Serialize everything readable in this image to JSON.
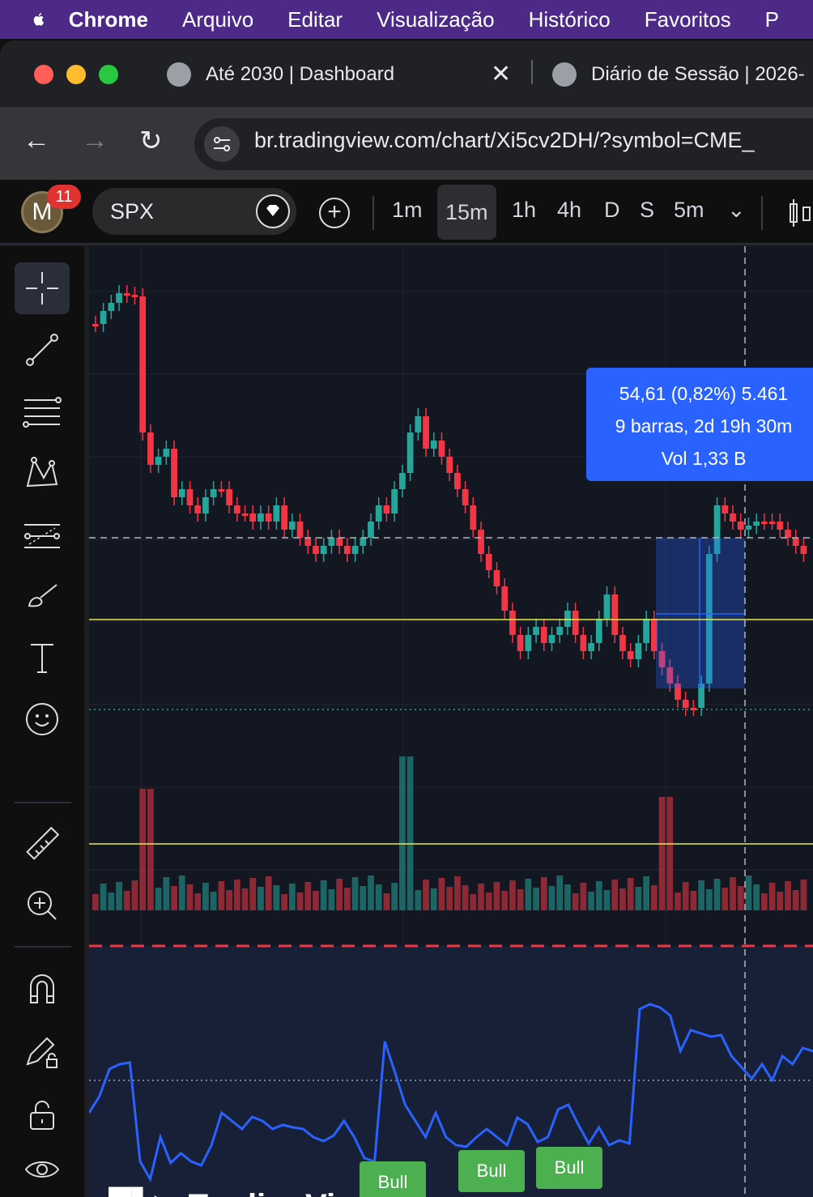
{
  "menubar": {
    "app": "Chrome",
    "items": [
      "Arquivo",
      "Editar",
      "Visualização",
      "Histórico",
      "Favoritos",
      "P"
    ]
  },
  "tabs": [
    {
      "title": "Até 2030 | Dashboard",
      "icon": "globe-icon"
    },
    {
      "title": "Diário de Sessão | 2026-",
      "icon": "globe-icon"
    }
  ],
  "toolbar": {
    "url": "br.tradingview.com/chart/Xi5cv2DH/?symbol=CME_"
  },
  "tv_header": {
    "avatar_letter": "M",
    "notifications": "11",
    "symbol": "SPX",
    "timeframes": [
      "1m",
      "15m",
      "1h",
      "4h",
      "D",
      "S",
      "5m"
    ],
    "active_timeframe": "15m"
  },
  "measure": {
    "line1": "54,61 (0,82%) 5.461",
    "line2": "9 barras, 2d 19h 30m",
    "line3": "Vol 1,33 B"
  },
  "signals": [
    {
      "label": "Bull"
    },
    {
      "label": "Bull"
    },
    {
      "label": "Bull"
    }
  ],
  "brand": "TradingView",
  "colors": {
    "up": "#26a69a",
    "down": "#f23645",
    "accent": "#2962ff",
    "level": "#e8e84a",
    "oscillator": "#2962ff"
  },
  "chart_data": {
    "type": "candlestick",
    "symbol": "SPX",
    "timeframe": "15m"
  }
}
